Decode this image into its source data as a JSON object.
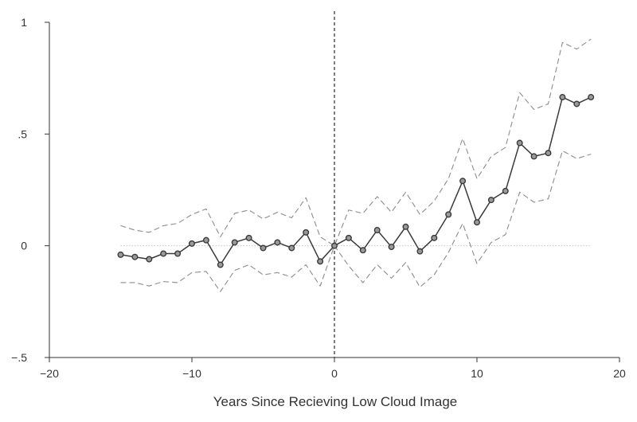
{
  "chart_data": {
    "type": "line",
    "title": "",
    "xlabel": "Years Since Recieving Low Cloud Image",
    "ylabel": "",
    "xlim": [
      -20,
      20
    ],
    "ylim": [
      -0.5,
      1
    ],
    "xticks": [
      -20,
      -10,
      0,
      10,
      20
    ],
    "xtick_labels": [
      "−20",
      "−10",
      "0",
      "10",
      "20"
    ],
    "yticks": [
      -0.5,
      0,
      0.5,
      1
    ],
    "ytick_labels": [
      "−.5",
      "0",
      ".5",
      "1"
    ],
    "grid": false,
    "reference_lines": {
      "vertical_at_x": 0,
      "horizontal_at_y": 0
    },
    "x": [
      -15,
      -14,
      -13,
      -12,
      -11,
      -10,
      -9,
      -8,
      -7,
      -6,
      -5,
      -4,
      -3,
      -2,
      -1,
      0,
      1,
      2,
      3,
      4,
      5,
      6,
      7,
      8,
      9,
      10,
      11,
      12,
      13,
      14,
      15,
      16,
      17,
      18
    ],
    "series": [
      {
        "role": "estimate",
        "style": "solid-with-circle-markers",
        "values": [
          -0.04,
          -0.05,
          -0.06,
          -0.035,
          -0.035,
          0.01,
          0.025,
          -0.085,
          0.015,
          0.035,
          -0.01,
          0.015,
          -0.01,
          0.06,
          -0.07,
          0.0,
          0.035,
          -0.02,
          0.07,
          -0.005,
          0.085,
          -0.025,
          0.035,
          0.14,
          0.29,
          0.105,
          0.205,
          0.245,
          0.46,
          0.4,
          0.415,
          0.665,
          0.635,
          0.665
        ]
      },
      {
        "role": "upper-bound",
        "style": "dashed",
        "values": [
          0.09,
          0.07,
          0.06,
          0.09,
          0.1,
          0.14,
          0.165,
          0.04,
          0.145,
          0.16,
          0.12,
          0.15,
          0.125,
          0.215,
          0.04,
          0.0,
          0.16,
          0.145,
          0.22,
          0.15,
          0.24,
          0.14,
          0.2,
          0.3,
          0.48,
          0.3,
          0.4,
          0.44,
          0.685,
          0.61,
          0.635,
          0.91,
          0.88,
          0.925
        ]
      },
      {
        "role": "lower-bound",
        "style": "dashed",
        "values": [
          -0.165,
          -0.165,
          -0.18,
          -0.16,
          -0.165,
          -0.12,
          -0.115,
          -0.205,
          -0.11,
          -0.085,
          -0.13,
          -0.12,
          -0.14,
          -0.085,
          -0.18,
          0.0,
          -0.09,
          -0.165,
          -0.085,
          -0.145,
          -0.075,
          -0.185,
          -0.13,
          -0.03,
          0.1,
          -0.08,
          0.015,
          0.05,
          0.24,
          0.195,
          0.21,
          0.425,
          0.39,
          0.41
        ]
      }
    ],
    "colors": {
      "estimate": "#3a3a3a",
      "bounds": "#8c8c8c",
      "axis": "#333333",
      "zero_line": "#c8c8c8",
      "vertical_line": "#3a3a3a",
      "marker_fill": "#9a9a9a",
      "background": "#ffffff"
    }
  }
}
